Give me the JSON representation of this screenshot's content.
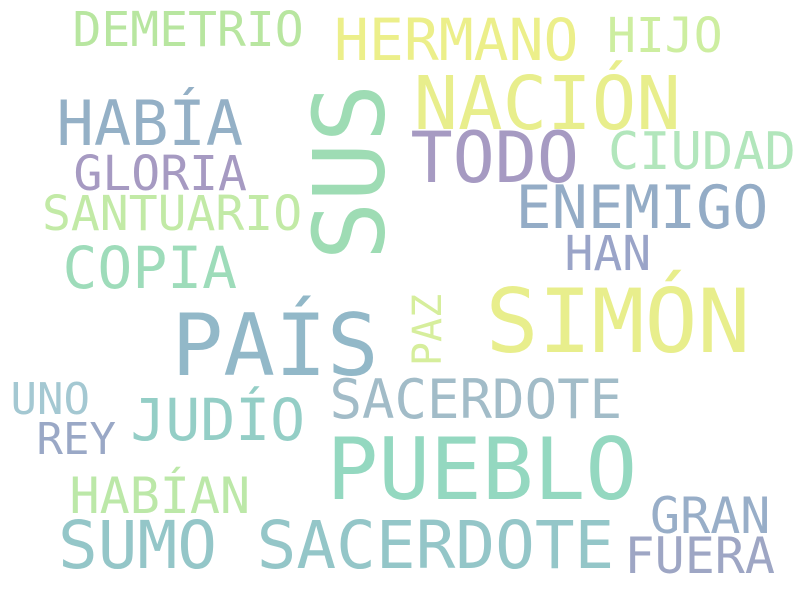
{
  "words": [
    {
      "text": "DEMETRIO",
      "color": "#b8e6a0"
    },
    {
      "text": "HERMANO",
      "color": "#ecef8a"
    },
    {
      "text": "HIJO",
      "color": "#cdeea0"
    },
    {
      "text": "NACIÓN",
      "color": "#e8ee8c"
    },
    {
      "text": "HABÍA",
      "color": "#94b0c6"
    },
    {
      "text": "SUS",
      "color": "#9edcb4"
    },
    {
      "text": "TODO",
      "color": "#a69ac2"
    },
    {
      "text": "CIUDAD",
      "color": "#b2e6bc"
    },
    {
      "text": "GLORIA",
      "color": "#a69ac2"
    },
    {
      "text": "SANTUARIO",
      "color": "#c2eaa6"
    },
    {
      "text": "ENEMIGO",
      "color": "#94acc6"
    },
    {
      "text": "HAN",
      "color": "#9aa4c8"
    },
    {
      "text": "COPIA",
      "color": "#9edcba"
    },
    {
      "text": "SIMÓN",
      "color": "#e8ee8c"
    },
    {
      "text": "PAÍS",
      "color": "#92b8c8"
    },
    {
      "text": "PAZ",
      "color": "#d6ee9c"
    },
    {
      "text": "UNO",
      "color": "#a4c8d2"
    },
    {
      "text": "SACERDOTE",
      "color": "#a2bcc8"
    },
    {
      "text": "JUDÍO",
      "color": "#94cec6"
    },
    {
      "text": "REY",
      "color": "#9aa8c6"
    },
    {
      "text": "PUEBLO",
      "color": "#94d8c0"
    },
    {
      "text": "HABÍAN",
      "color": "#bce8a8"
    },
    {
      "text": "GRAN",
      "color": "#98aec8"
    },
    {
      "text": "SUMO SACERDOTE",
      "color": "#94c6c8"
    },
    {
      "text": "FUERA",
      "color": "#9ea6c4"
    }
  ]
}
